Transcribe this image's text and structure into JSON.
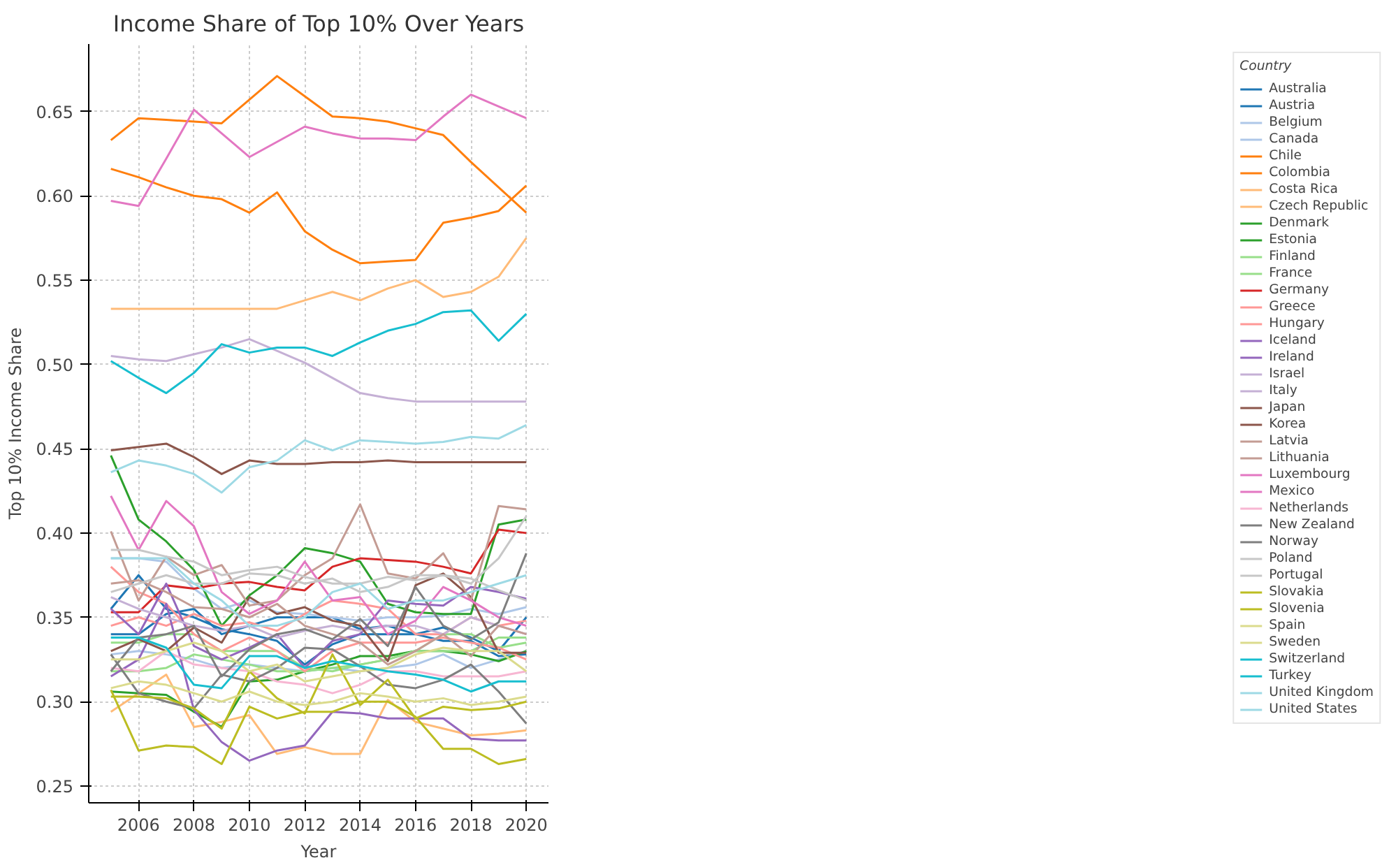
{
  "chart_data": {
    "type": "line",
    "title": "Income Share of Top 10% Over Years",
    "xlabel": "Year",
    "ylabel": "Top 10% Income Share",
    "legend_title": "Country",
    "legend": "right",
    "grid": true,
    "line_style": "solid",
    "x": [
      2005,
      2006,
      2007,
      2008,
      2009,
      2010,
      2011,
      2012,
      2013,
      2014,
      2015,
      2016,
      2017,
      2018,
      2019,
      2020
    ],
    "xlim": [
      2004.2,
      2020.8
    ],
    "xticks": [
      2006,
      2008,
      2010,
      2012,
      2014,
      2016,
      2018,
      2020
    ],
    "ylim": [
      0.24,
      0.69
    ],
    "yticks": [
      {
        "value": 0.25,
        "label": "0.25"
      },
      {
        "value": 0.3,
        "label": "0.30"
      },
      {
        "value": 0.35,
        "label": "0.35"
      },
      {
        "value": 0.4,
        "label": "0.40"
      },
      {
        "value": 0.45,
        "label": "0.45"
      },
      {
        "value": 0.5,
        "label": "0.50"
      },
      {
        "value": 0.55,
        "label": "0.55"
      },
      {
        "value": 0.6,
        "label": "0.60"
      },
      {
        "value": 0.65,
        "label": "0.65"
      }
    ],
    "series": [
      {
        "name": "Australia",
        "color": "#1f77b4",
        "values": [
          0.34,
          0.34,
          0.352,
          0.355,
          0.34,
          0.345,
          0.35,
          0.35,
          0.35,
          0.343,
          0.345,
          0.34,
          0.344,
          0.338,
          0.33,
          0.35
        ]
      },
      {
        "name": "Austria",
        "color": "#1f77b4",
        "values": [
          0.355,
          0.375,
          0.355,
          0.35,
          0.343,
          0.34,
          0.336,
          0.322,
          0.334,
          0.34,
          0.34,
          0.34,
          0.336,
          0.336,
          0.327,
          0.328
        ]
      },
      {
        "name": "Belgium",
        "color": "#aec7e8",
        "values": [
          0.328,
          0.33,
          0.328,
          0.325,
          0.32,
          0.322,
          0.32,
          0.318,
          0.32,
          0.318,
          0.32,
          0.322,
          0.328,
          0.32,
          0.325,
          0.33
        ]
      },
      {
        "name": "Canada",
        "color": "#aec7e8",
        "values": [
          0.385,
          0.385,
          0.383,
          0.367,
          0.355,
          0.36,
          0.353,
          0.352,
          0.35,
          0.348,
          0.35,
          0.35,
          0.351,
          0.355,
          0.352,
          0.356
        ]
      },
      {
        "name": "Chile",
        "color": "#ff7f0e",
        "values": [
          0.616,
          0.611,
          0.605,
          0.6,
          0.598,
          0.59,
          0.602,
          0.579,
          0.568,
          0.56,
          0.561,
          0.562,
          0.584,
          0.587,
          0.591,
          0.606
        ]
      },
      {
        "name": "Colombia",
        "color": "#ff7f0e",
        "values": [
          0.633,
          0.646,
          0.645,
          0.644,
          0.643,
          0.657,
          0.671,
          0.659,
          0.647,
          0.646,
          0.644,
          0.64,
          0.636,
          0.62,
          0.605,
          0.59
        ]
      },
      {
        "name": "Costa Rica",
        "color": "#ffbb78",
        "values": [
          0.533,
          0.533,
          0.533,
          0.533,
          0.533,
          0.533,
          0.533,
          0.538,
          0.543,
          0.538,
          0.545,
          0.55,
          0.54,
          0.543,
          0.552,
          0.575
        ]
      },
      {
        "name": "Czech Republic",
        "color": "#ffbb78",
        "values": [
          0.294,
          0.305,
          0.316,
          0.285,
          0.288,
          0.292,
          0.269,
          0.273,
          0.269,
          0.269,
          0.301,
          0.288,
          0.284,
          0.28,
          0.281,
          0.283
        ]
      },
      {
        "name": "Denmark",
        "color": "#2ca02c",
        "values": [
          0.306,
          0.305,
          0.304,
          0.294,
          0.285,
          0.312,
          0.313,
          0.318,
          0.322,
          0.327,
          0.327,
          0.33,
          0.33,
          0.328,
          0.324,
          0.33
        ]
      },
      {
        "name": "Estonia",
        "color": "#2ca02c",
        "values": [
          0.446,
          0.408,
          0.395,
          0.378,
          0.345,
          0.363,
          0.375,
          0.391,
          0.388,
          0.383,
          0.358,
          0.353,
          0.352,
          0.352,
          0.405,
          0.408
        ]
      },
      {
        "name": "Finland",
        "color": "#98df8a",
        "values": [
          0.335,
          0.335,
          0.34,
          0.34,
          0.33,
          0.33,
          0.33,
          0.32,
          0.318,
          0.322,
          0.325,
          0.33,
          0.34,
          0.34,
          0.332,
          0.335
        ]
      },
      {
        "name": "France",
        "color": "#98df8a",
        "values": [
          0.318,
          0.318,
          0.32,
          0.328,
          0.325,
          0.322,
          0.318,
          0.318,
          0.32,
          0.322,
          0.325,
          0.33,
          0.33,
          0.33,
          0.338,
          0.338
        ]
      },
      {
        "name": "Germany",
        "color": "#d62728",
        "values": [
          0.353,
          0.353,
          0.369,
          0.367,
          0.37,
          0.371,
          0.368,
          0.366,
          0.38,
          0.385,
          0.384,
          0.383,
          0.38,
          0.376,
          0.402,
          0.4
        ]
      },
      {
        "name": "Greece",
        "color": "#ff9896",
        "values": [
          0.345,
          0.35,
          0.345,
          0.352,
          0.345,
          0.347,
          0.342,
          0.352,
          0.36,
          0.358,
          0.355,
          0.34,
          0.34,
          0.35,
          0.345,
          0.348
        ]
      },
      {
        "name": "Hungary",
        "color": "#ff9896",
        "values": [
          0.38,
          0.365,
          0.358,
          0.34,
          0.33,
          0.338,
          0.33,
          0.318,
          0.33,
          0.335,
          0.335,
          0.335,
          0.338,
          0.335,
          0.332,
          0.325
        ]
      },
      {
        "name": "Iceland",
        "color": "#9467bd",
        "values": [
          0.355,
          0.34,
          0.37,
          0.333,
          0.325,
          0.332,
          0.34,
          0.32,
          0.336,
          0.34,
          0.36,
          0.358,
          0.357,
          0.368,
          0.365,
          0.361
        ]
      },
      {
        "name": "Ireland",
        "color": "#9467bd",
        "values": [
          0.315,
          0.325,
          0.358,
          0.295,
          0.276,
          0.265,
          0.271,
          0.274,
          0.294,
          0.293,
          0.29,
          0.29,
          0.29,
          0.278,
          0.277,
          0.277
        ]
      },
      {
        "name": "Israel",
        "color": "#c5b0d5",
        "values": [
          0.505,
          0.503,
          0.502,
          0.506,
          0.51,
          0.515,
          0.508,
          0.501,
          0.492,
          0.483,
          0.48,
          0.478,
          0.478,
          0.478,
          0.478,
          0.478
        ]
      },
      {
        "name": "Italy",
        "color": "#c5b0d5",
        "values": [
          0.362,
          0.355,
          0.35,
          0.345,
          0.342,
          0.345,
          0.338,
          0.342,
          0.345,
          0.342,
          0.345,
          0.345,
          0.34,
          0.35,
          0.345,
          0.34
        ]
      },
      {
        "name": "Japan",
        "color": "#8c564b",
        "values": [
          0.33,
          0.337,
          0.33,
          0.344,
          0.335,
          0.362,
          0.352,
          0.356,
          0.348,
          0.345,
          0.324,
          0.369,
          0.376,
          0.362,
          0.329,
          0.329
        ]
      },
      {
        "name": "Korea",
        "color": "#8c564b",
        "values": [
          0.449,
          0.451,
          0.453,
          0.445,
          0.435,
          0.443,
          0.441,
          0.441,
          0.442,
          0.442,
          0.443,
          0.442,
          0.442,
          0.442,
          0.442,
          0.442
        ]
      },
      {
        "name": "Latvia",
        "color": "#c49c94",
        "values": [
          0.37,
          0.372,
          0.365,
          0.356,
          0.355,
          0.35,
          0.358,
          0.345,
          0.34,
          0.335,
          0.322,
          0.33,
          0.34,
          0.327,
          0.345,
          0.34
        ]
      },
      {
        "name": "Lithuania",
        "color": "#c49c94",
        "values": [
          0.401,
          0.36,
          0.386,
          0.375,
          0.381,
          0.357,
          0.36,
          0.375,
          0.385,
          0.417,
          0.376,
          0.373,
          0.388,
          0.36,
          0.416,
          0.414
        ]
      },
      {
        "name": "Luxembourg",
        "color": "#e377c2",
        "values": [
          0.422,
          0.39,
          0.419,
          0.404,
          0.365,
          0.352,
          0.36,
          0.383,
          0.36,
          0.362,
          0.34,
          0.348,
          0.368,
          0.36,
          0.35,
          0.345
        ]
      },
      {
        "name": "Mexico",
        "color": "#e377c2",
        "values": [
          0.597,
          0.594,
          0.622,
          0.651,
          0.637,
          0.623,
          0.632,
          0.641,
          0.637,
          0.634,
          0.634,
          0.633,
          0.647,
          0.66,
          0.653,
          0.646
        ]
      },
      {
        "name": "Netherlands",
        "color": "#f7b6d2",
        "values": [
          0.32,
          0.318,
          0.33,
          0.322,
          0.32,
          0.318,
          0.312,
          0.31,
          0.305,
          0.31,
          0.318,
          0.318,
          0.315,
          0.315,
          0.315,
          0.318
        ]
      },
      {
        "name": "New Zealand",
        "color": "#7f7f7f",
        "values": [
          0.318,
          0.338,
          0.34,
          0.345,
          0.315,
          0.331,
          0.34,
          0.343,
          0.337,
          0.349,
          0.333,
          0.368,
          0.345,
          0.337,
          0.347,
          0.388
        ]
      },
      {
        "name": "Norway",
        "color": "#7f7f7f",
        "values": [
          0.328,
          0.305,
          0.3,
          0.296,
          0.316,
          0.312,
          0.32,
          0.332,
          0.331,
          0.321,
          0.31,
          0.308,
          0.313,
          0.322,
          0.306,
          0.287
        ]
      },
      {
        "name": "Poland",
        "color": "#c7c7c7",
        "values": [
          0.39,
          0.39,
          0.386,
          0.383,
          0.375,
          0.378,
          0.38,
          0.374,
          0.37,
          0.37,
          0.374,
          0.372,
          0.375,
          0.373,
          0.366,
          0.36
        ]
      },
      {
        "name": "Portugal",
        "color": "#c7c7c7",
        "values": [
          0.365,
          0.37,
          0.375,
          0.37,
          0.37,
          0.376,
          0.375,
          0.37,
          0.373,
          0.365,
          0.368,
          0.375,
          0.375,
          0.37,
          0.385,
          0.41
        ]
      },
      {
        "name": "Slovakia",
        "color": "#bcbd22",
        "values": [
          0.307,
          0.271,
          0.274,
          0.273,
          0.263,
          0.297,
          0.29,
          0.294,
          0.294,
          0.3,
          0.3,
          0.291,
          0.272,
          0.272,
          0.263,
          0.266
        ]
      },
      {
        "name": "Slovenia",
        "color": "#bcbd22",
        "values": [
          0.303,
          0.303,
          0.302,
          0.296,
          0.284,
          0.318,
          0.302,
          0.293,
          0.328,
          0.298,
          0.313,
          0.29,
          0.297,
          0.295,
          0.296,
          0.3
        ]
      },
      {
        "name": "Spain",
        "color": "#dbdb8d",
        "values": [
          0.325,
          0.325,
          0.33,
          0.335,
          0.33,
          0.318,
          0.322,
          0.312,
          0.315,
          0.318,
          0.32,
          0.328,
          0.332,
          0.33,
          0.33,
          0.318
        ]
      },
      {
        "name": "Sweden",
        "color": "#dbdb8d",
        "values": [
          0.308,
          0.312,
          0.31,
          0.305,
          0.3,
          0.306,
          0.3,
          0.298,
          0.3,
          0.305,
          0.303,
          0.3,
          0.302,
          0.298,
          0.3,
          0.303
        ]
      },
      {
        "name": "Switzerland",
        "color": "#17becf",
        "values": [
          0.338,
          0.338,
          0.332,
          0.31,
          0.308,
          0.327,
          0.327,
          0.32,
          0.324,
          0.321,
          0.318,
          0.316,
          0.313,
          0.306,
          0.312,
          0.312
        ]
      },
      {
        "name": "Turkey",
        "color": "#17becf",
        "values": [
          0.502,
          0.492,
          0.483,
          0.495,
          0.512,
          0.507,
          0.51,
          0.51,
          0.505,
          0.513,
          0.52,
          0.524,
          0.531,
          0.532,
          0.514,
          0.53
        ]
      },
      {
        "name": "United Kingdom",
        "color": "#9edae5",
        "values": [
          0.385,
          0.385,
          0.385,
          0.37,
          0.36,
          0.345,
          0.345,
          0.35,
          0.365,
          0.37,
          0.355,
          0.36,
          0.36,
          0.365,
          0.37,
          0.375
        ]
      },
      {
        "name": "United States",
        "color": "#9edae5",
        "values": [
          0.436,
          0.443,
          0.44,
          0.435,
          0.424,
          0.439,
          0.443,
          0.455,
          0.449,
          0.455,
          0.454,
          0.453,
          0.454,
          0.457,
          0.456,
          0.464
        ]
      }
    ]
  }
}
